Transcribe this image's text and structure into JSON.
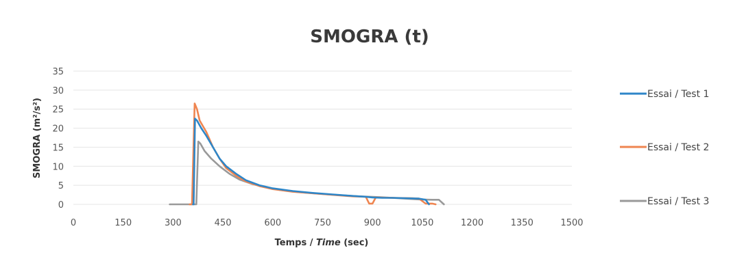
{
  "chart_data": {
    "type": "line",
    "title": "SMOGRA (t)",
    "xlabel": {
      "pre": "Temps / ",
      "italic": "Time",
      "post": " (sec)"
    },
    "ylabel": "SMOGRA (m²/s²)",
    "xlim": [
      0,
      1500
    ],
    "ylim": [
      0,
      35
    ],
    "xticks": [
      0,
      150,
      300,
      450,
      600,
      750,
      900,
      1050,
      1200,
      1350,
      1500
    ],
    "yticks": [
      0,
      5,
      10,
      15,
      20,
      25,
      30,
      35
    ],
    "grid": true,
    "legend_position": "right",
    "series": [
      {
        "name": "Essai / Test 1",
        "color": "#2e86c8",
        "x": [
          360,
          362,
          366,
          372,
          385,
          400,
          420,
          440,
          460,
          490,
          520,
          560,
          600,
          660,
          720,
          780,
          840,
          880,
          900,
          930,
          960,
          1000,
          1040,
          1060,
          1070
        ],
        "y": [
          0,
          0,
          22.5,
          22,
          20,
          18,
          15,
          12,
          10,
          8,
          6.3,
          5,
          4.2,
          3.5,
          3,
          2.6,
          2.2,
          2,
          1.8,
          1.7,
          1.7,
          1.6,
          1.5,
          1.2,
          0
        ]
      },
      {
        "name": "Essai / Test 2",
        "color": "#ef8550",
        "x": [
          350,
          357,
          365,
          372,
          380,
          400,
          420,
          440,
          460,
          490,
          520,
          560,
          600,
          660,
          720,
          780,
          840,
          880,
          890,
          900,
          910,
          1020,
          1040,
          1060,
          1080,
          1090
        ],
        "y": [
          0,
          0,
          26.5,
          25,
          22,
          19,
          15,
          12,
          9.5,
          7.5,
          6,
          4.8,
          4,
          3.3,
          2.9,
          2.5,
          2.1,
          2,
          0.2,
          0.2,
          1.8,
          1.6,
          1.5,
          0.2,
          0.2,
          0
        ]
      },
      {
        "name": "Essai / Test 3",
        "color": "#999999",
        "x": [
          290,
          370,
          376,
          382,
          395,
          415,
          440,
          470,
          500,
          540,
          580,
          620,
          680,
          740,
          800,
          860,
          920,
          980,
          1040,
          1080,
          1100,
          1115
        ],
        "y": [
          0,
          0,
          16.5,
          16,
          14,
          12,
          10,
          8,
          6.5,
          5.3,
          4.5,
          3.8,
          3.2,
          2.8,
          2.4,
          2.1,
          1.9,
          1.6,
          1.3,
          1.2,
          1.2,
          0
        ]
      }
    ]
  }
}
